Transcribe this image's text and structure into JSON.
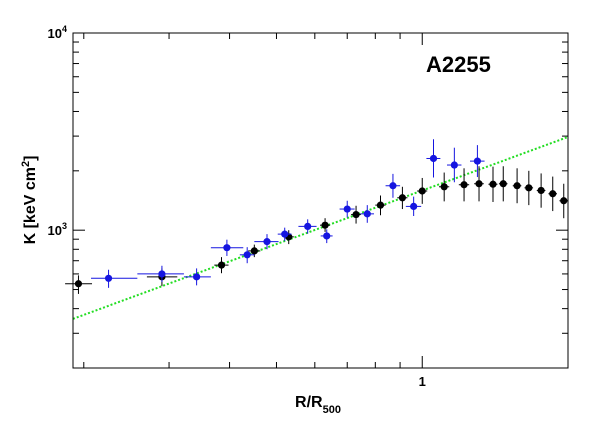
{
  "chart_data": {
    "type": "scatter",
    "title": "A2255",
    "xlabel": {
      "main": "R/R",
      "sub": "500"
    },
    "ylabel": {
      "main": "K [keV cm",
      "sup": "2",
      "end": "]"
    },
    "xscale": "log",
    "yscale": "log",
    "xlim": [
      0.19,
      2.0
    ],
    "ylim": [
      200,
      10000
    ],
    "grid": false,
    "x_tick_labels": [
      {
        "value": 1,
        "text": "1"
      }
    ],
    "y_tick_labels": [
      {
        "value": 1000,
        "base": "10",
        "exp": "3"
      },
      {
        "value": 10000,
        "base": "10",
        "exp": "4"
      }
    ],
    "colors": {
      "series_black": "#000000",
      "series_blue": "#1515e0",
      "reference_line": "#22dd22"
    },
    "series": [
      {
        "color": "#000000",
        "points": [
          {
            "x": 0.195,
            "y": 535,
            "xerr": [
              0.183,
              0.208
            ],
            "yerr": [
              475,
              590
            ]
          },
          {
            "x": 0.29,
            "y": 580,
            "xerr": [
              0.27,
              0.312
            ],
            "yerr": [
              520,
              640
            ]
          },
          {
            "x": 0.385,
            "y": 665,
            "xerr": [
              0.372,
              0.398
            ],
            "yerr": [
              605,
              730
            ]
          },
          {
            "x": 0.45,
            "y": 785,
            "xerr": [
              0.437,
              0.463
            ],
            "yerr": [
              730,
              845
            ]
          },
          {
            "x": 0.53,
            "y": 925,
            "xerr": [
              0.517,
              0.543
            ],
            "yerr": [
              850,
              1000
            ]
          },
          {
            "x": 0.63,
            "y": 1060,
            "xerr": [
              0.615,
              0.645
            ],
            "yerr": [
              980,
              1150
            ]
          },
          {
            "x": 0.73,
            "y": 1200,
            "xerr": [
              0.713,
              0.747
            ],
            "yerr": [
              1080,
              1330
            ]
          },
          {
            "x": 0.82,
            "y": 1340,
            "xerr": [
              0.8,
              0.84
            ],
            "yerr": [
              1190,
              1500
            ]
          },
          {
            "x": 0.91,
            "y": 1460,
            "xerr": [
              0.888,
              0.932
            ],
            "yerr": [
              1280,
              1660
            ]
          },
          {
            "x": 1.0,
            "y": 1580,
            "xerr": [
              0.976,
              1.024
            ],
            "yerr": [
              1360,
              1840
            ]
          },
          {
            "x": 1.11,
            "y": 1660,
            "xerr": [
              1.083,
              1.137
            ],
            "yerr": [
              1400,
              1960
            ]
          },
          {
            "x": 1.22,
            "y": 1700,
            "xerr": [
              1.19,
              1.25
            ],
            "yerr": [
              1400,
              2060
            ]
          },
          {
            "x": 1.31,
            "y": 1720,
            "xerr": [
              1.28,
              1.34
            ],
            "yerr": [
              1400,
              2110
            ]
          },
          {
            "x": 1.4,
            "y": 1710,
            "xerr": [
              1.37,
              1.43
            ],
            "yerr": [
              1390,
              2100
            ]
          },
          {
            "x": 1.47,
            "y": 1720,
            "xerr": [
              1.44,
              1.5
            ],
            "yerr": [
              1400,
              2110
            ]
          },
          {
            "x": 1.57,
            "y": 1680,
            "xerr": [
              1.538,
              1.602
            ],
            "yerr": [
              1370,
              2060
            ]
          },
          {
            "x": 1.66,
            "y": 1640,
            "xerr": [
              1.626,
              1.694
            ],
            "yerr": [
              1340,
              2000
            ]
          },
          {
            "x": 1.76,
            "y": 1590,
            "xerr": [
              1.724,
              1.796
            ],
            "yerr": [
              1300,
              1940
            ]
          },
          {
            "x": 1.86,
            "y": 1530,
            "xerr": [
              1.822,
              1.898
            ],
            "yerr": [
              1250,
              1870
            ]
          },
          {
            "x": 1.96,
            "y": 1410,
            "xerr": [
              1.92,
              2.0
            ],
            "yerr": [
              1150,
              1720
            ]
          }
        ]
      },
      {
        "color": "#1515e0",
        "points": [
          {
            "x": 0.225,
            "y": 570,
            "xerr": [
              0.207,
              0.258
            ],
            "yerr": [
              510,
              630
            ]
          },
          {
            "x": 0.29,
            "y": 600,
            "xerr": [
              0.258,
              0.322
            ],
            "yerr": [
              545,
              660
            ]
          },
          {
            "x": 0.342,
            "y": 580,
            "xerr": [
              0.322,
              0.366
            ],
            "yerr": [
              525,
              640
            ]
          },
          {
            "x": 0.395,
            "y": 815,
            "xerr": [
              0.366,
              0.427
            ],
            "yerr": [
              740,
              895
            ]
          },
          {
            "x": 0.435,
            "y": 750,
            "xerr": [
              0.42,
              0.45
            ],
            "yerr": [
              680,
              820
            ]
          },
          {
            "x": 0.478,
            "y": 875,
            "xerr": [
              0.45,
              0.505
            ],
            "yerr": [
              800,
              955
            ]
          },
          {
            "x": 0.52,
            "y": 955,
            "xerr": [
              0.503,
              0.537
            ],
            "yerr": [
              880,
              1030
            ]
          },
          {
            "x": 0.58,
            "y": 1045,
            "xerr": [
              0.555,
              0.605
            ],
            "yerr": [
              960,
              1135
            ]
          },
          {
            "x": 0.635,
            "y": 935,
            "xerr": [
              0.617,
              0.653
            ],
            "yerr": [
              860,
              1010
            ]
          },
          {
            "x": 0.7,
            "y": 1280,
            "xerr": [
              0.675,
              0.725
            ],
            "yerr": [
              1160,
              1410
            ]
          },
          {
            "x": 0.77,
            "y": 1210,
            "xerr": [
              0.745,
              0.795
            ],
            "yerr": [
              1090,
              1340
            ]
          },
          {
            "x": 0.87,
            "y": 1680,
            "xerr": [
              0.84,
              0.9
            ],
            "yerr": [
              1460,
              1930
            ]
          },
          {
            "x": 0.96,
            "y": 1320,
            "xerr": [
              0.925,
              0.995
            ],
            "yerr": [
              1180,
              1480
            ]
          },
          {
            "x": 1.055,
            "y": 2310,
            "xerr": [
              1.02,
              1.09
            ],
            "yerr": [
              1850,
              2890
            ]
          },
          {
            "x": 1.165,
            "y": 2140,
            "xerr": [
              1.125,
              1.205
            ],
            "yerr": [
              1750,
              2620
            ]
          },
          {
            "x": 1.3,
            "y": 2240,
            "xerr": [
              1.255,
              1.345
            ],
            "yerr": [
              1860,
              2700
            ]
          }
        ]
      }
    ],
    "reference_line": {
      "style": "dotted",
      "x": [
        0.19,
        2.0
      ],
      "y": [
        355,
        2970
      ]
    }
  }
}
